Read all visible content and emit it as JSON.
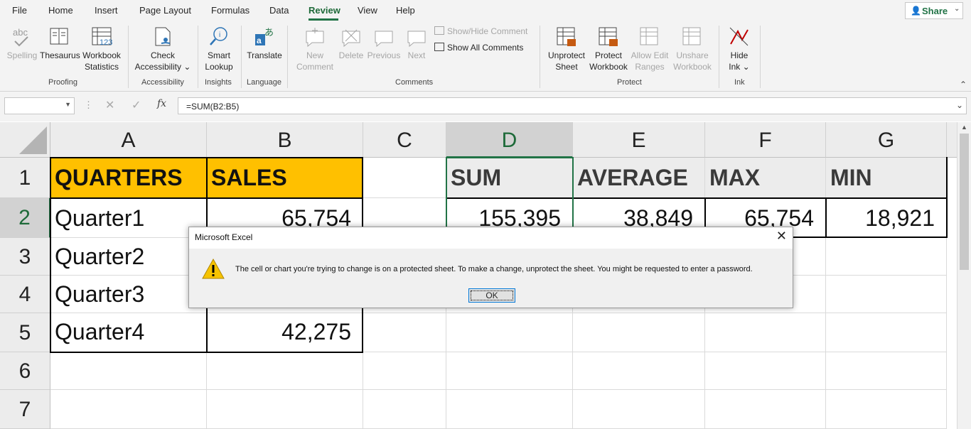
{
  "menu": {
    "tabs": [
      {
        "label": "File"
      },
      {
        "label": "Home"
      },
      {
        "label": "Insert"
      },
      {
        "label": "Page Layout"
      },
      {
        "label": "Formulas"
      },
      {
        "label": "Data"
      },
      {
        "label": "Review"
      },
      {
        "label": "View"
      },
      {
        "label": "Help"
      }
    ],
    "active": "Review",
    "share_label": "Share"
  },
  "ribbon": {
    "proofing": {
      "spelling": "Spelling",
      "thesaurus": "Thesaurus",
      "workbook_statistics_1": "Workbook",
      "workbook_statistics_2": "Statistics",
      "group": "Proofing"
    },
    "accessibility": {
      "check_1": "Check",
      "check_2": "Accessibility",
      "group": "Accessibility"
    },
    "insights": {
      "smart_1": "Smart",
      "smart_2": "Lookup",
      "group": "Insights"
    },
    "language": {
      "translate": "Translate",
      "group": "Language"
    },
    "comments": {
      "new_1": "New",
      "new_2": "Comment",
      "delete": "Delete",
      "previous": "Previous",
      "next": "Next",
      "show_hide": "Show/Hide Comment",
      "show_all": "Show All Comments",
      "group": "Comments"
    },
    "protect": {
      "unprotect_1": "Unprotect",
      "unprotect_2": "Sheet",
      "protect_wb_1": "Protect",
      "protect_wb_2": "Workbook",
      "allow_1": "Allow Edit",
      "allow_2": "Ranges",
      "unshare_1": "Unshare",
      "unshare_2": "Workbook",
      "group": "Protect"
    },
    "ink": {
      "hide_1": "Hide",
      "hide_2": "Ink",
      "group": "Ink"
    }
  },
  "formula_bar": {
    "name_box": "",
    "fx": "fx",
    "formula": "=SUM(B2:B5)"
  },
  "columns": [
    "A",
    "B",
    "C",
    "D",
    "E",
    "F",
    "G"
  ],
  "rows": [
    "1",
    "2",
    "3",
    "4",
    "5",
    "6",
    "7"
  ],
  "cells": {
    "A1": "QUARTERS",
    "B1": "SALES",
    "D1": "SUM",
    "E1": "AVERAGE",
    "F1": "MAX",
    "G1": "MIN",
    "A2": "Quarter1",
    "B2": "65,754",
    "D2": "155,395",
    "E2": "38,849",
    "F2": "65,754",
    "G2": "18,921",
    "A3": "Quarter2",
    "A4": "Quarter3",
    "A5": "Quarter4",
    "B5": "42,275"
  },
  "colors": {
    "accent": "#217346",
    "header_fill": "#ffc000",
    "warning": "#f6c300"
  },
  "dialog": {
    "title": "Microsoft Excel",
    "message": "The cell or chart you're trying to change is on a protected sheet. To make a change, unprotect the sheet. You might be requested to enter a password.",
    "ok_label": "OK",
    "icon": "warning-icon"
  }
}
